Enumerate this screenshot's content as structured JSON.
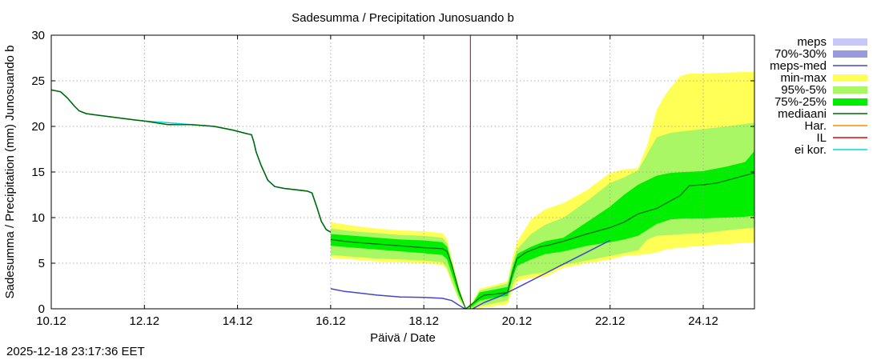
{
  "chart_data": {
    "type": "area",
    "title": "Sadesumma / Precipitation  Junosuando b",
    "xlabel": "Päivä / Date",
    "ylabel": "Sadesumma / Precipitation (mm)  Junosuando b",
    "timestamp": "2025-12-18 23:17:36 EET",
    "x_unit": "days since 10.12",
    "xlim": [
      0,
      15.1
    ],
    "ylim": [
      0,
      30
    ],
    "grid": true,
    "legend_position": "right",
    "x_ticks": [
      {
        "v": 0,
        "label": "10.12"
      },
      {
        "v": 2,
        "label": "12.12"
      },
      {
        "v": 4,
        "label": "14.12"
      },
      {
        "v": 6,
        "label": "16.12"
      },
      {
        "v": 8,
        "label": "18.12"
      },
      {
        "v": 10,
        "label": "20.12"
      },
      {
        "v": 12,
        "label": "22.12"
      },
      {
        "v": 14,
        "label": "24.12"
      }
    ],
    "y_ticks": [
      {
        "v": 0,
        "label": "0"
      },
      {
        "v": 5,
        "label": "5"
      },
      {
        "v": 10,
        "label": "10"
      },
      {
        "v": 15,
        "label": "15"
      },
      {
        "v": 20,
        "label": "20"
      },
      {
        "v": 25,
        "label": "25"
      },
      {
        "v": 30,
        "label": "30"
      }
    ],
    "now_line_x": 9.0,
    "legend": [
      {
        "label": "meps",
        "color": "#c8c8f8",
        "kind": "box"
      },
      {
        "label": "70%-30%",
        "color": "#9999dd",
        "kind": "box"
      },
      {
        "label": "meps-med",
        "color": "#4444cc",
        "kind": "line"
      },
      {
        "label": "min-max",
        "color": "#ffff55",
        "kind": "box"
      },
      {
        "label": "95%-5%",
        "color": "#aaf766",
        "kind": "box"
      },
      {
        "label": "75%-25%",
        "color": "#00ee00",
        "kind": "box"
      },
      {
        "label": "mediaani",
        "color": "#006600",
        "kind": "line"
      },
      {
        "label": "Har.",
        "color": "#ff8800",
        "kind": "line"
      },
      {
        "label": "IL",
        "color": "#ee0000",
        "kind": "line"
      },
      {
        "label": "ei kor.",
        "color": "#00dddd",
        "kind": "line"
      }
    ],
    "series": {
      "history_ei_kor": {
        "x": [
          0,
          0.2,
          0.35,
          0.5,
          0.6,
          0.75,
          0.9,
          1.2,
          1.5,
          1.8,
          2.0,
          2.5,
          3.0,
          3.5,
          3.9,
          4.2,
          4.3,
          4.35,
          4.4,
          4.5,
          4.65,
          4.8,
          5.0,
          5.5,
          5.6,
          5.7,
          5.8,
          5.9,
          6.0
        ],
        "y": [
          24.0,
          23.8,
          23.1,
          22.2,
          21.7,
          21.4,
          21.3,
          21.1,
          20.9,
          20.7,
          20.6,
          20.4,
          20.2,
          20.0,
          19.6,
          19.2,
          19.1,
          18.3,
          17.2,
          15.8,
          14.1,
          13.4,
          13.2,
          12.9,
          12.7,
          11.2,
          9.6,
          8.7,
          8.4
        ]
      },
      "history_mediaani": {
        "x": [
          0,
          0.2,
          0.35,
          0.5,
          0.6,
          0.75,
          0.9,
          1.2,
          1.5,
          1.8,
          2.0,
          2.5,
          3.0,
          3.5,
          3.9,
          4.2,
          4.3,
          4.35,
          4.4,
          4.5,
          4.65,
          4.8,
          5.0,
          5.5,
          5.6,
          5.7,
          5.8,
          5.9,
          6.0
        ],
        "y": [
          24.0,
          23.8,
          23.1,
          22.2,
          21.7,
          21.4,
          21.3,
          21.1,
          20.9,
          20.7,
          20.6,
          20.2,
          20.2,
          20.0,
          19.6,
          19.2,
          19.1,
          18.3,
          17.2,
          15.8,
          14.1,
          13.4,
          13.2,
          12.9,
          12.7,
          11.2,
          9.6,
          8.7,
          8.4
        ]
      },
      "meps_med": {
        "x": [
          6.0,
          6.3,
          6.5,
          7.0,
          7.5,
          8.0,
          8.4,
          8.6,
          8.75,
          8.85,
          8.9
        ],
        "y": [
          2.2,
          1.9,
          1.8,
          1.5,
          1.3,
          1.25,
          1.15,
          0.9,
          0.4,
          0.1,
          0.0
        ]
      },
      "forecast_mediaani": {
        "x": [
          6.0,
          6.3,
          6.5,
          7.0,
          7.5,
          8.0,
          8.4,
          8.5,
          8.6,
          8.75,
          8.9,
          9.05,
          9.2,
          9.3,
          9.5,
          9.8,
          9.9,
          10.0,
          10.2,
          10.5,
          10.7,
          11.0,
          11.5,
          12.0,
          12.3,
          12.6,
          13.0,
          13.5,
          13.7,
          14.0,
          14.3,
          14.6,
          15.1
        ],
        "y": [
          7.6,
          7.4,
          7.3,
          7.1,
          6.9,
          6.7,
          6.6,
          6.3,
          4.8,
          2.0,
          0.0,
          0.6,
          1.2,
          1.5,
          1.6,
          1.8,
          3.8,
          5.5,
          6.2,
          6.8,
          7.0,
          7.4,
          8.2,
          8.9,
          9.5,
          10.4,
          11.0,
          12.4,
          13.5,
          13.6,
          13.8,
          14.2,
          14.9
        ]
      },
      "meps_forecast": {
        "x": [
          9.05,
          9.3,
          9.6,
          10.0,
          10.5,
          11.0,
          11.5,
          12.0
        ],
        "y": [
          0.0,
          0.7,
          1.3,
          2.3,
          3.6,
          4.9,
          6.2,
          7.5
        ]
      },
      "minmax": {
        "x": [
          6.0,
          6.5,
          7.0,
          7.5,
          8.0,
          8.4,
          8.5,
          8.6,
          8.75,
          8.9,
          9.05,
          9.2,
          9.5,
          9.8,
          9.9,
          10.0,
          10.3,
          10.6,
          11.0,
          11.5,
          12.0,
          12.3,
          12.6,
          12.8,
          13.0,
          13.2,
          13.5,
          13.7,
          14.0,
          14.5,
          15.1
        ],
        "upper": [
          9.5,
          9.1,
          8.8,
          8.6,
          8.5,
          8.3,
          7.6,
          5.5,
          2.5,
          0.0,
          0.8,
          2.2,
          2.6,
          3.0,
          5.5,
          7.3,
          9.8,
          10.9,
          11.6,
          13.0,
          14.9,
          15.3,
          15.4,
          18.0,
          21.8,
          23.6,
          25.5,
          25.8,
          25.8,
          25.9,
          26.0
        ],
        "lower": [
          5.6,
          5.4,
          5.2,
          5.1,
          5.0,
          4.8,
          4.2,
          2.8,
          1.0,
          0.0,
          0.0,
          0.1,
          0.3,
          0.5,
          2.0,
          3.0,
          3.4,
          3.5,
          4.5,
          5.0,
          5.4,
          5.8,
          5.9,
          6.0,
          6.2,
          6.5,
          6.7,
          6.8,
          6.9,
          7.1,
          7.3
        ]
      },
      "p95_5": {
        "x": [
          6.0,
          6.5,
          7.0,
          7.5,
          8.0,
          8.4,
          8.5,
          8.6,
          8.75,
          8.9,
          9.05,
          9.2,
          9.5,
          9.8,
          9.9,
          10.0,
          10.3,
          10.6,
          11.0,
          11.5,
          12.0,
          12.3,
          12.6,
          12.8,
          13.0,
          13.3,
          13.6,
          14.0,
          14.5,
          15.1
        ],
        "upper": [
          8.8,
          8.5,
          8.3,
          8.1,
          8.0,
          7.8,
          7.2,
          5.2,
          2.3,
          0.0,
          0.7,
          2.0,
          2.4,
          2.8,
          5.0,
          6.5,
          8.2,
          9.2,
          10.0,
          11.8,
          13.8,
          14.4,
          15.2,
          17.0,
          18.8,
          19.3,
          19.5,
          19.7,
          20.0,
          20.4
        ],
        "lower": [
          5.9,
          5.7,
          5.5,
          5.4,
          5.3,
          5.1,
          4.5,
          3.0,
          1.1,
          0.0,
          0.1,
          0.3,
          0.6,
          0.9,
          2.5,
          3.5,
          3.8,
          4.0,
          4.8,
          5.3,
          5.8,
          6.1,
          6.4,
          7.6,
          8.0,
          8.1,
          8.2,
          8.3,
          8.6,
          8.9
        ]
      },
      "p75_25": {
        "x": [
          6.0,
          6.5,
          7.0,
          7.5,
          8.0,
          8.4,
          8.5,
          8.6,
          8.75,
          8.9,
          9.05,
          9.2,
          9.5,
          9.8,
          9.9,
          10.0,
          10.3,
          10.6,
          11.0,
          11.5,
          12.0,
          12.3,
          12.6,
          13.0,
          13.3,
          13.6,
          14.0,
          14.5,
          14.9,
          15.1
        ],
        "upper": [
          8.2,
          8.0,
          7.8,
          7.6,
          7.5,
          7.3,
          6.8,
          5.0,
          2.2,
          0.0,
          0.6,
          1.8,
          2.1,
          2.4,
          4.4,
          6.0,
          6.8,
          7.4,
          7.8,
          9.5,
          11.2,
          12.5,
          13.6,
          14.6,
          14.9,
          15.0,
          15.1,
          15.6,
          16.1,
          17.3
        ],
        "lower": [
          6.9,
          6.7,
          6.5,
          6.3,
          6.1,
          5.9,
          5.4,
          3.8,
          1.5,
          0.0,
          0.3,
          0.9,
          1.2,
          1.4,
          3.2,
          4.7,
          5.4,
          6.0,
          6.3,
          6.9,
          7.3,
          7.6,
          8.0,
          9.3,
          9.8,
          9.9,
          9.9,
          10.0,
          10.1,
          10.2
        ]
      }
    }
  }
}
